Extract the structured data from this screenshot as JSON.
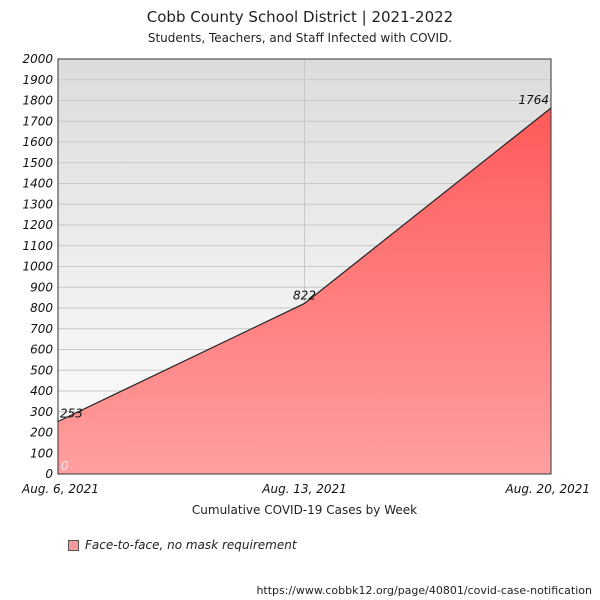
{
  "chart_data": {
    "type": "area",
    "title": "Cobb County School District | 2021-2022",
    "subtitle": "Students, Teachers, and Staff Infected with COVID.",
    "xlabel": "Cumulative COVID-19 Cases by Week",
    "ylabel": "",
    "categories": [
      "Aug. 6, 2021",
      "Aug. 13, 2021",
      "Aug. 20, 2021"
    ],
    "series": [
      {
        "name": "Face-to-face, no mask requirement",
        "values": [
          253,
          822,
          1764
        ],
        "data_labels": [
          "253",
          "822",
          "1764"
        ]
      }
    ],
    "ylim": [
      0,
      2000
    ],
    "yticks": [
      0,
      100,
      200,
      300,
      400,
      500,
      600,
      700,
      800,
      900,
      1000,
      1100,
      1200,
      1300,
      1400,
      1500,
      1600,
      1700,
      1800,
      1900,
      2000
    ],
    "ytick_labels": [
      "0",
      "100",
      "200",
      "300",
      "400",
      "500",
      "600",
      "700",
      "800",
      "900",
      "1000",
      "1100",
      "1200",
      "1300",
      "1400",
      "1500",
      "1600",
      "1700",
      "1800",
      "1900",
      "2000"
    ],
    "origin_label": "0",
    "grid": true,
    "legend": "bottom-left",
    "colors": {
      "area_top": "#ff5a5a",
      "area_bottom": "#ff9f9f",
      "line": "#222222",
      "bg_top": "#dcdcdc",
      "bg_bottom": "#ffffff",
      "swatch": "#f59a9a"
    }
  },
  "footer": {
    "source": "https://www.cobbk12.org/page/40801/covid-case-notification"
  }
}
